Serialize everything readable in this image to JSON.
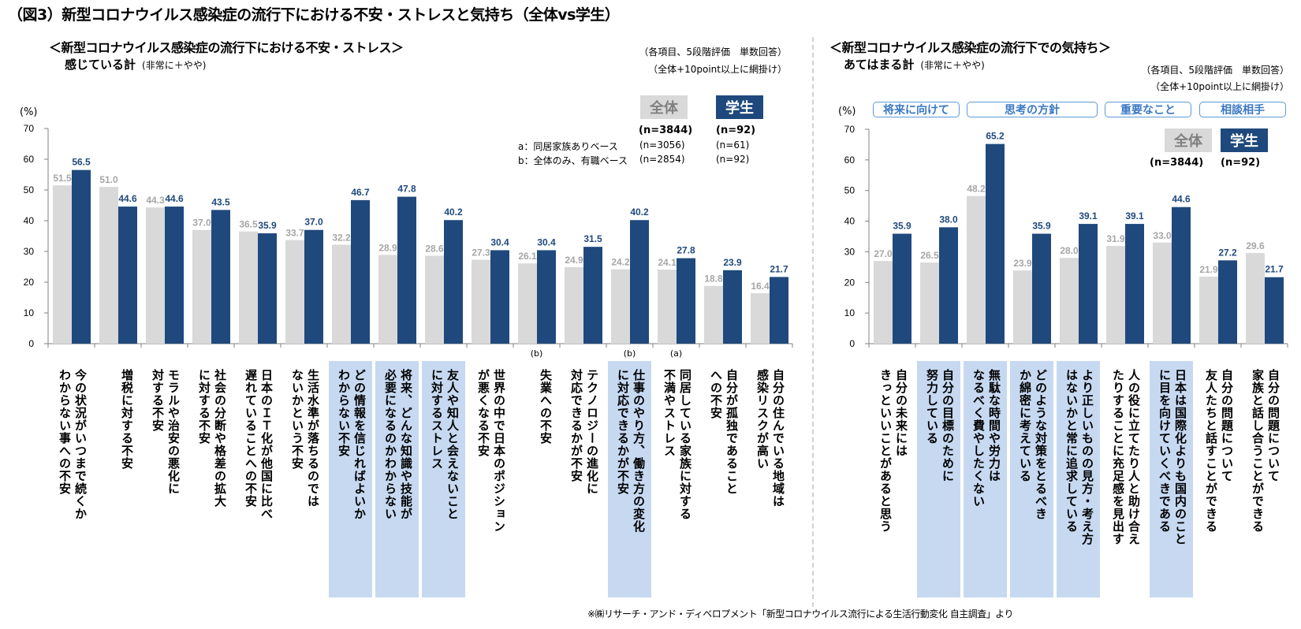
{
  "figure_title": "（図3）新型コロナウイルス感染症の流行下における不安・ストレスと気持ち（全体vs学生）",
  "footer": "※㈱リサーチ・アンド・ディベロプメント「新型コロナウイルス流行による生活行動変化 自主調査」より",
  "colors": {
    "all": "#d9d9d9",
    "all_label": "#a6a6a6",
    "student": "#1f497d",
    "shade": "#c6d9f1",
    "category_border": "#5b9bd5"
  },
  "left": {
    "title": "＜新型コロナウイルス感染症の流行下における不安・ストレス＞",
    "caption": "感じている計",
    "caption_paren": "(非常に＋やや)",
    "note1": "（各項目、5段階評価　単数回答）",
    "note2": "（全体+10point以上に網掛け）",
    "legend": {
      "all": "全体",
      "student": "学生",
      "all_n": "(n=3844)",
      "student_n": "(n=92)"
    },
    "bases": [
      {
        "label": "a：同居家族ありベース",
        "all_n": "(n=3056)",
        "student_n": "(n=61)"
      },
      {
        "label": "b：全体のみ、有職ベース",
        "all_n": "(n=2854)",
        "student_n": "(n=92)"
      }
    ],
    "unit": "(%)"
  },
  "right": {
    "title": "＜新型コロナウイルス感染症の流行下での気持ち＞",
    "caption": "あてはまる計",
    "caption_paren": "(非常に＋やや)",
    "note1": "（各項目、5段階評価　単数回答）",
    "note2": "（全体+10point以上に網掛け）",
    "legend": {
      "all": "全体",
      "student": "学生",
      "all_n": "(n=3844)",
      "student_n": "(n=92)"
    },
    "categories": [
      "将来に向けて",
      "思考の方針",
      "重要なこと",
      "相談相手"
    ],
    "unit": "(%)"
  },
  "chart_data": [
    {
      "type": "bar",
      "title": "＜新型コロナウイルス感染症の流行下における不安・ストレス＞ 感じている計",
      "ylabel": "(%)",
      "ylim": [
        0,
        70
      ],
      "yticks": [
        0,
        10,
        20,
        30,
        40,
        50,
        60,
        70
      ],
      "categories": [
        "今の状況がいつまで続くかわからない事への不安",
        "増税に対する不安",
        "モラルや治安の悪化に対する不安",
        "社会の分断や格差の拡大に対する不安",
        "日本のＩＴ化が他国に比べ遅れていることへの不安",
        "生活水準が落ちるのではないかという不安",
        "どの情報を信じればよいかわからない不安",
        "将来、どんな知識や技能が必要になるのかわからない",
        "友人や知人と会えないことに対するストレス",
        "世界の中で日本のポジションが悪くなる不安",
        "失業への不安",
        "テクノロジーの進化に対応できるかが不安",
        "仕事のやり方、働き方の変化に対応できるかが不安",
        "同居している家族に対する不満やストレス",
        "自分が孤独であることへの不安",
        "自分の住んでいる地域は感染リスクが高い"
      ],
      "label_columns": [
        [
          "今の状況がいつまで続くか",
          "わからない事への不安"
        ],
        [
          "増税に対する不安"
        ],
        [
          "モラルや治安の悪化に",
          "対する不安"
        ],
        [
          "社会の分断や格差の拡大",
          "に対する不安"
        ],
        [
          "日本のＩＴ化が他国に比べ",
          "遅れていることへの不安"
        ],
        [
          "生活水準が落ちるのでは",
          "ないかという不安"
        ],
        [
          "どの情報を信じればよいか",
          "わからない不安"
        ],
        [
          "将来、どんな知識や技能が",
          "必要になるのかわからない"
        ],
        [
          "友人や知人と会えないこと",
          "に対するストレス"
        ],
        [
          "世界の中で日本のポジション",
          "が悪くなる不安"
        ],
        [
          "失業への不安"
        ],
        [
          "テクノロジーの進化に",
          "対応できるかが不安"
        ],
        [
          "仕事のやり方、働き方の変化",
          "に対応できるかが不安"
        ],
        [
          "同居している家族に対する",
          "不満やストレス"
        ],
        [
          "自分が孤独であること",
          "への不安"
        ],
        [
          "自分の住んでいる地域は",
          "感染リスクが高い"
        ]
      ],
      "base_marks": [
        "",
        "",
        "",
        "",
        "",
        "",
        "",
        "",
        "",
        "",
        "(b)",
        "",
        "(b)",
        "(a)",
        "",
        ""
      ],
      "shaded": [
        false,
        false,
        false,
        false,
        false,
        false,
        true,
        true,
        true,
        false,
        false,
        false,
        true,
        false,
        false,
        false
      ],
      "series": [
        {
          "name": "全体",
          "values": [
            51.5,
            51.0,
            44.3,
            37.0,
            36.5,
            33.7,
            32.2,
            28.9,
            28.6,
            27.3,
            26.1,
            24.9,
            24.2,
            24.1,
            18.8,
            16.4
          ]
        },
        {
          "name": "学生",
          "values": [
            56.5,
            44.6,
            44.6,
            43.5,
            35.9,
            37.0,
            46.7,
            47.8,
            40.2,
            30.4,
            30.4,
            31.5,
            40.2,
            27.8,
            23.9,
            21.7
          ]
        }
      ]
    },
    {
      "type": "bar",
      "title": "＜新型コロナウイルス感染症の流行下での気持ち＞ あてはまる計",
      "ylabel": "(%)",
      "ylim": [
        0,
        70
      ],
      "yticks": [
        0,
        10,
        20,
        30,
        40,
        50,
        60,
        70
      ],
      "categories": [
        "自分の未来にはきっといいことがあると思う",
        "自分の目標のために努力している",
        "無駄な時間や労力はなるべく費やしたくない",
        "どのような対策をとるべきか綿密に考えている",
        "より正しいものの見方・考え方はないかと常に追求している",
        "人の役に立てたり人と助け合えたりすることに充足感を見出す",
        "日本は国際化よりも国内のことに目を向けていくべきである",
        "自分の問題について友人たちと話すことができる",
        "自分の問題について家族と話し合うことができる"
      ],
      "label_columns": [
        [
          "自分の未来には",
          "きっといいことがあると思う"
        ],
        [
          "自分の目標のために",
          "努力している"
        ],
        [
          "無駄な時間や労力は",
          "なるべく費やしたくない"
        ],
        [
          "どのような対策をとるべき",
          "か綿密に考えている"
        ],
        [
          "より正しいものの見方・考え方",
          "はないかと常に追求している"
        ],
        [
          "人の役に立てたり人と助け合え",
          "たりすることに充足感を見出す"
        ],
        [
          "日本は国際化よりも国内のこと",
          "に目を向けていくべきである"
        ],
        [
          "自分の問題について",
          "友人たちと話すことができる"
        ],
        [
          "自分の問題について",
          "家族と話し合うことができる"
        ]
      ],
      "shaded": [
        false,
        true,
        true,
        true,
        true,
        false,
        true,
        false,
        false
      ],
      "series": [
        {
          "name": "全体",
          "values": [
            27.0,
            26.5,
            48.2,
            23.9,
            28.0,
            31.9,
            33.0,
            21.9,
            29.6
          ]
        },
        {
          "name": "学生",
          "values": [
            35.9,
            38.0,
            65.2,
            35.9,
            39.1,
            39.1,
            44.6,
            27.2,
            21.7
          ]
        }
      ]
    }
  ]
}
